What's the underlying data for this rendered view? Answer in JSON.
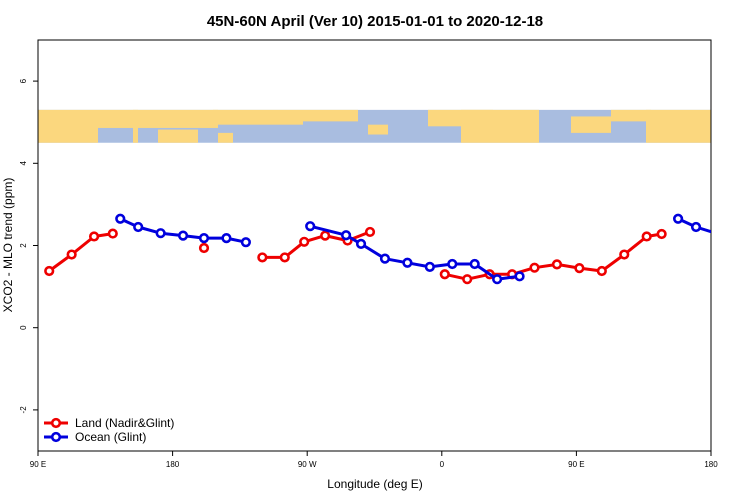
{
  "chart_data": {
    "type": "line",
    "title": "45N-60N April (Ver 10)   2015-01-01 to 2020-12-18",
    "xlabel": "Longitude (deg E)",
    "ylabel": "XCO2 - MLO trend (ppm)",
    "x_ticks": [
      {
        "value": 90,
        "label": "90 E"
      },
      {
        "value": 180,
        "label": "180"
      },
      {
        "value": 270,
        "label": "90 W"
      },
      {
        "value": 360,
        "label": "0"
      },
      {
        "value": 450,
        "label": "90 E"
      },
      {
        "value": 540,
        "label": "180"
      }
    ],
    "y_ticks": [
      -2,
      0,
      2,
      4,
      6
    ],
    "xlim": [
      90,
      540
    ],
    "ylim": [
      -3.0,
      7.0
    ],
    "map_band_ylim": [
      4.5,
      5.3
    ],
    "colors": {
      "land": "#ee0000",
      "ocean": "#0000dd",
      "map_water": "#a9bde0",
      "map_land": "#fbd77e"
    },
    "series": [
      {
        "name": "Land (Nadir&Glint)",
        "color": "#ee0000",
        "segments": [
          [
            [
              97.5,
              1.38
            ],
            [
              112.5,
              1.78
            ],
            [
              127.5,
              2.22
            ],
            [
              140,
              2.29
            ]
          ],
          [
            [
              201,
              1.94
            ]
          ],
          [
            [
              240,
              1.71
            ],
            [
              255,
              1.71
            ],
            [
              268,
              2.09
            ],
            [
              282,
              2.24
            ],
            [
              297,
              2.12
            ],
            [
              312,
              2.33
            ]
          ],
          [
            [
              362,
              1.3
            ],
            [
              377,
              1.18
            ],
            [
              392,
              1.3
            ],
            [
              407,
              1.3
            ],
            [
              422,
              1.46
            ],
            [
              437,
              1.54
            ],
            [
              452,
              1.45
            ],
            [
              467,
              1.38
            ],
            [
              482,
              1.78
            ],
            [
              497,
              2.22
            ],
            [
              507,
              2.28
            ]
          ]
        ]
      },
      {
        "name": "Ocean (Glint)",
        "color": "#0000dd",
        "segments": [
          [
            [
              145,
              2.65
            ],
            [
              157,
              2.45
            ],
            [
              172,
              2.3
            ],
            [
              187,
              2.24
            ],
            [
              201,
              2.18
            ],
            [
              216,
              2.18
            ],
            [
              229,
              2.08
            ]
          ],
          [
            [
              272,
              2.47
            ],
            [
              296,
              2.25
            ],
            [
              306,
              2.04
            ],
            [
              322,
              1.68
            ],
            [
              337,
              1.58
            ],
            [
              352,
              1.48
            ],
            [
              367,
              1.55
            ],
            [
              382,
              1.55
            ],
            [
              397,
              1.18
            ],
            [
              412,
              1.25
            ]
          ],
          [
            [
              518,
              2.65
            ],
            [
              530,
              2.45
            ],
            [
              545,
              2.28
            ]
          ]
        ]
      }
    ],
    "legend": {
      "position": "bottom-left",
      "entries": [
        "Land (Nadir&Glint)",
        "Ocean (Glint)"
      ]
    },
    "grid": false
  }
}
